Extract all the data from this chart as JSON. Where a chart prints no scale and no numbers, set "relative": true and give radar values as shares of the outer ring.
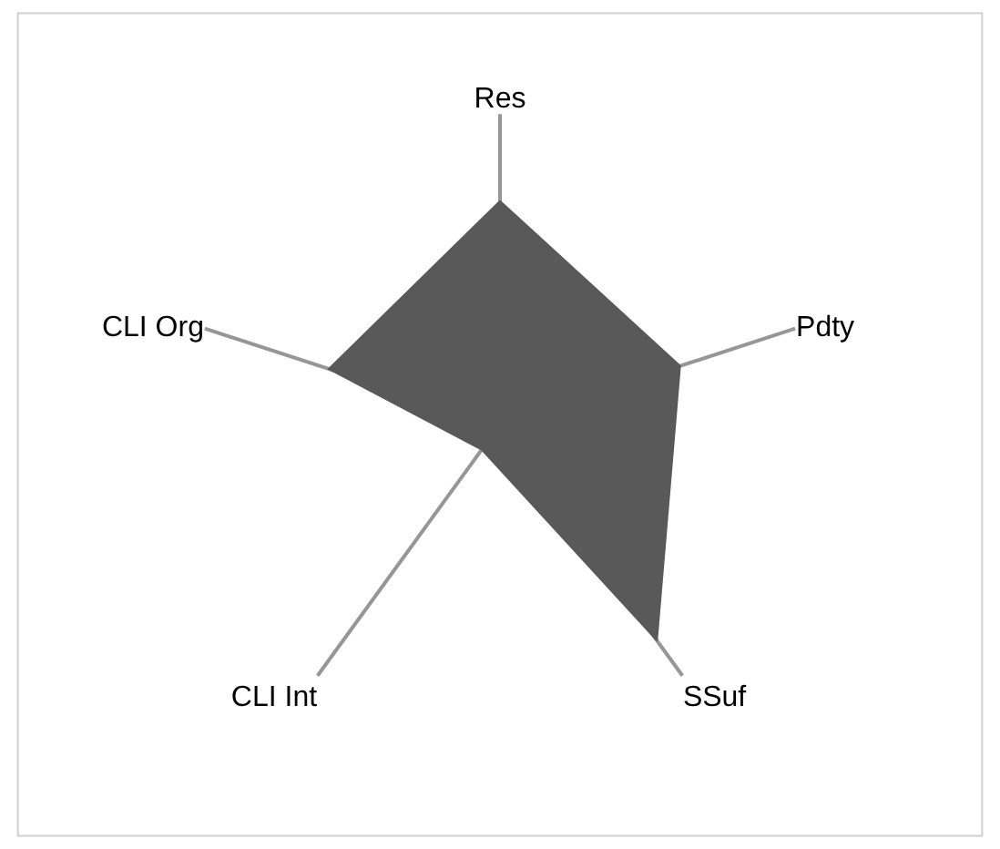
{
  "chart_data": {
    "type": "radar",
    "relative": true,
    "categories": [
      "Res",
      "Pdty",
      "SSuf",
      "CLI Int",
      "CLI Org"
    ],
    "series": [
      {
        "color": "#595959",
        "values": [
          0.72,
          0.61,
          0.86,
          0.1,
          0.58
        ]
      }
    ],
    "grid": "x"
  }
}
